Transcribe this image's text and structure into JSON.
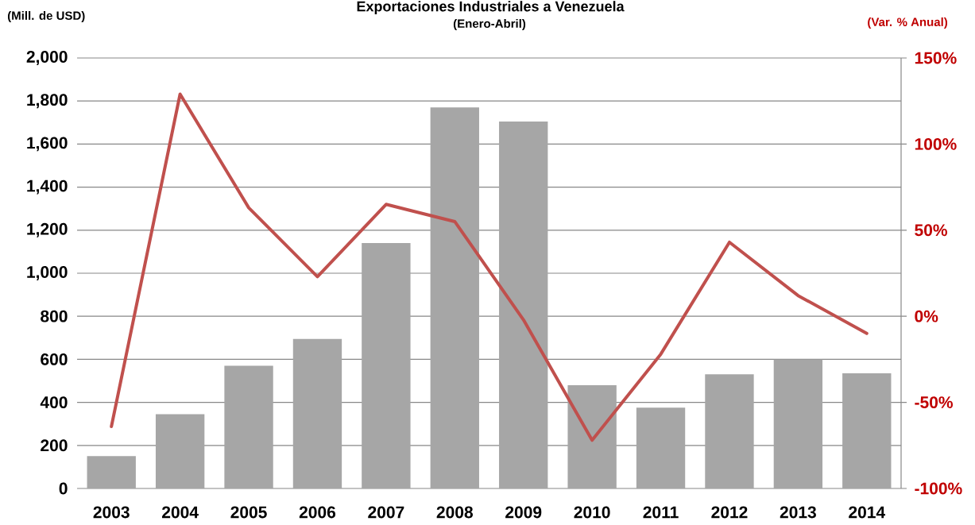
{
  "chart_data": {
    "type": "bar",
    "title": "Exportaciones Industriales a Venezuela",
    "subtitle": "(Enero-Abril)",
    "ylabel": "(Mill. de USD)",
    "y2label": "(Var. % Anual)",
    "categories": [
      "2003",
      "2004",
      "2005",
      "2006",
      "2007",
      "2008",
      "2009",
      "2010",
      "2011",
      "2012",
      "2013",
      "2014"
    ],
    "series": [
      {
        "color": "#a6a6a6",
        "values": [
          150,
          345,
          570,
          695,
          1140,
          1770,
          1705,
          480,
          375,
          530,
          600,
          535
        ]
      },
      {
        "type": "line",
        "axis": "y2",
        "color": "#c0504d",
        "values": [
          -64,
          129,
          63,
          23,
          65,
          55,
          -2,
          -72,
          -22,
          43,
          12,
          -10
        ]
      }
    ],
    "ylim": [
      0,
      2000
    ],
    "yticks": [
      0,
      200,
      400,
      600,
      800,
      {
        "value": 1000,
        "label": "1,000"
      },
      {
        "value": 1200,
        "label": "1,200"
      },
      {
        "value": 1400,
        "label": "1,400"
      },
      {
        "value": 1600,
        "label": "1,600"
      },
      {
        "value": 1800,
        "label": "1,800"
      },
      {
        "value": 2000,
        "label": "2,000"
      }
    ],
    "y2lim": [
      -100,
      150
    ],
    "y2ticks": [
      {
        "value": -100,
        "label": "-100%"
      },
      {
        "value": -50,
        "label": "-50%"
      },
      {
        "value": 0,
        "label": "0%"
      },
      {
        "value": 50,
        "label": "50%"
      },
      {
        "value": 100,
        "label": "100%"
      },
      {
        "value": 150,
        "label": "150%"
      }
    ],
    "grid": "y"
  }
}
